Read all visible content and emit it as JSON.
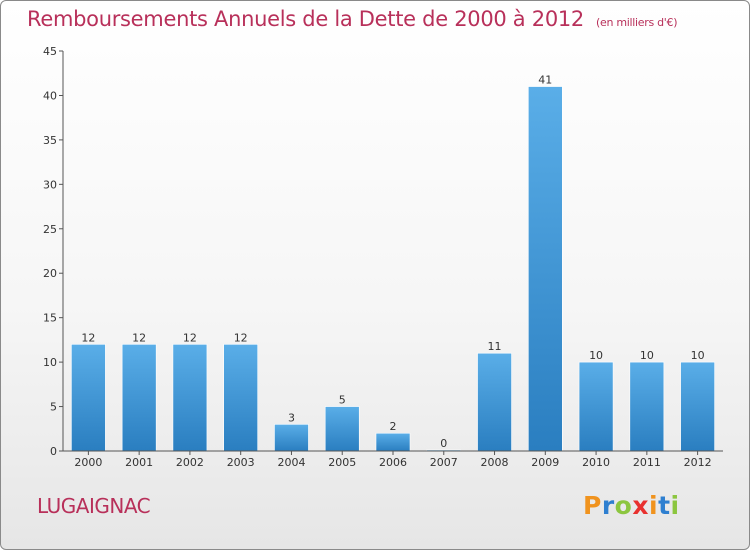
{
  "title": "Remboursements Annuels de la Dette de 2000 à 2012",
  "unit": "(en milliers d'€)",
  "location": "LUGAIGNAC",
  "logo": {
    "text": "Proxiti",
    "letter_colors": [
      "#f0931e",
      "#2e7fd0",
      "#8cc63f",
      "#e8312f",
      "#f0931e",
      "#2e7fd0",
      "#8cc63f"
    ]
  },
  "colors": {
    "title": "#b8305a",
    "bar_light": "#5aaee8",
    "bar_dark": "#2a7ec0",
    "axis": "#555555",
    "text": "#333333"
  },
  "chart_data": {
    "type": "bar",
    "title": "Remboursements Annuels de la Dette de 2000 à 2012",
    "categories": [
      "2000",
      "2001",
      "2002",
      "2003",
      "2004",
      "2005",
      "2006",
      "2007",
      "2008",
      "2009",
      "2010",
      "2011",
      "2012"
    ],
    "values": [
      12,
      12,
      12,
      12,
      3,
      5,
      2,
      0,
      11,
      41,
      10,
      10,
      10
    ],
    "data_labels": [
      "12",
      "12",
      "12",
      "12",
      "3",
      "5",
      "2",
      "0",
      "11",
      "41",
      "10",
      "10",
      "10"
    ],
    "ylim": [
      0,
      45
    ],
    "yticks": [
      0,
      5,
      10,
      15,
      20,
      25,
      30,
      35,
      40,
      45
    ],
    "xlabel": "",
    "ylabel": "",
    "grid": false,
    "legend": "none"
  }
}
